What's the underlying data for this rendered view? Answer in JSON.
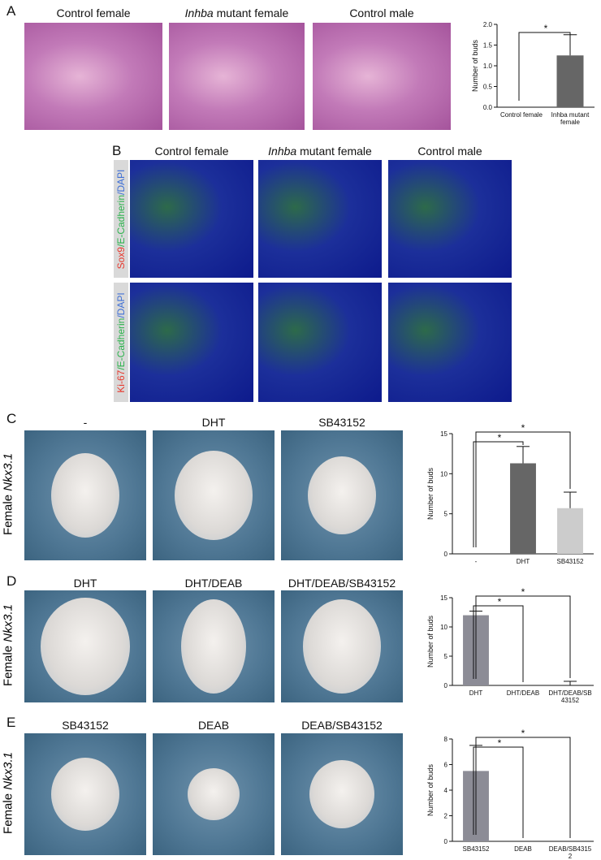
{
  "panel_labels": [
    "A",
    "B",
    "C",
    "D",
    "E"
  ],
  "panel_a": {
    "captions": [
      "Control female",
      [
        "Inhba",
        "mutant female"
      ],
      "Control male"
    ]
  },
  "panel_b": {
    "captions": [
      "Control female",
      [
        "Inhba",
        "mutant female"
      ],
      "Control male"
    ],
    "row_labels": [
      [
        "Sox9",
        "/E-Cadherin",
        "/DAPI"
      ],
      [
        "Ki-67",
        "/E-Cadherin",
        "/DAPI"
      ]
    ],
    "row_label_colors": [
      "#e8372c",
      "#2bb24c",
      "#3e6fd6"
    ]
  },
  "panel_c": {
    "captions": [
      "-",
      "DHT",
      "SB43152"
    ],
    "side_label": [
      "Female",
      "Nkx3.1"
    ]
  },
  "panel_d": {
    "captions": [
      "DHT",
      "DHT/DEAB",
      "DHT/DEAB/SB43152"
    ],
    "side_label": [
      "Female",
      "Nkx3.1"
    ]
  },
  "panel_e": {
    "captions": [
      "SB43152",
      "DEAB",
      "DEAB/SB43152"
    ],
    "side_label": [
      "Female",
      "Nkx3.1"
    ]
  },
  "chart_data": [
    {
      "type": "bar",
      "ylabel": "Number of buds",
      "categories": [
        "Control female",
        "Inhba mutant female"
      ],
      "values": [
        0,
        1.25
      ],
      "errors": [
        0,
        0.5
      ],
      "colors": [
        "#666666",
        "#666666"
      ],
      "ylim": [
        0,
        2
      ],
      "yticks": [
        {
          "value": 0,
          "label": "0.0"
        },
        {
          "value": 0.5,
          "label": "0.5"
        },
        {
          "value": 1,
          "label": "1.0"
        },
        {
          "value": 1.5,
          "label": "1.5"
        },
        {
          "value": 2,
          "label": "2.0"
        }
      ],
      "annotations": [
        "*"
      ]
    },
    {
      "type": "bar",
      "ylabel": "Number of buds",
      "categories": [
        "-",
        "DHT",
        "SB43152"
      ],
      "values": [
        0,
        11.3,
        5.7
      ],
      "errors": [
        0,
        2.1,
        2
      ],
      "colors": [
        "#555555",
        "#666666",
        "#cccccc"
      ],
      "ylim": [
        0,
        15
      ],
      "yticks": [
        0,
        5,
        10,
        15
      ],
      "annotations": [
        "*",
        "*"
      ]
    },
    {
      "type": "bar",
      "ylabel": "Number of buds",
      "categories": [
        "DHT",
        "DHT/DEAB",
        "DHT/DEAB/SB43152"
      ],
      "values": [
        12,
        0,
        0
      ],
      "errors": [
        0.7,
        0,
        0.7
      ],
      "colors": [
        "#8c8c96",
        "#8c8c96",
        "#8c8c96"
      ],
      "ylim": [
        0,
        15
      ],
      "yticks": [
        0,
        5,
        10,
        15
      ],
      "annotations": [
        "*",
        "*"
      ]
    },
    {
      "type": "bar",
      "ylabel": "Number of buds",
      "categories": [
        "SB43152",
        "DEAB",
        "DEAB/SB43152"
      ],
      "values": [
        5.5,
        0,
        0
      ],
      "errors": [
        2,
        0,
        0
      ],
      "colors": [
        "#8c8c96",
        "#8c8c96",
        "#8c8c96"
      ],
      "ylim": [
        0,
        8
      ],
      "yticks": [
        0,
        2,
        4,
        6,
        8
      ],
      "annotations": [
        "*",
        "*"
      ]
    }
  ]
}
